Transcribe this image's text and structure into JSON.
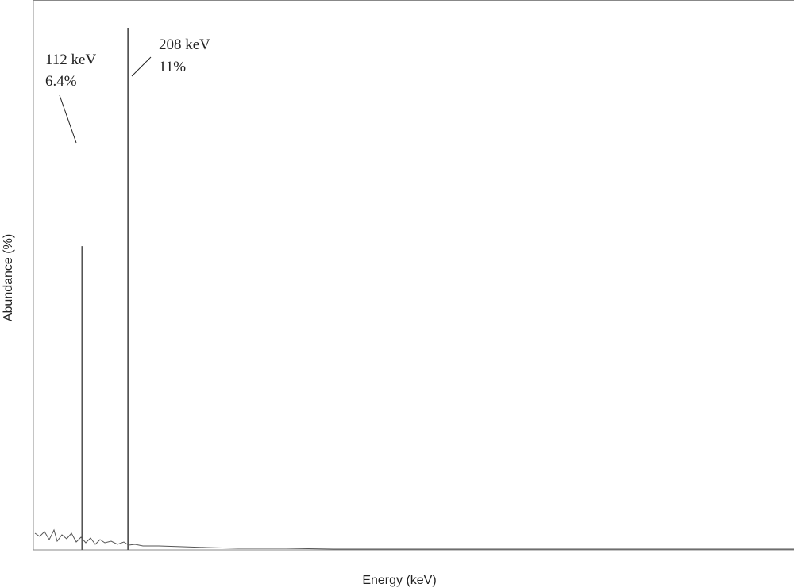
{
  "chart_data": {
    "type": "spectrum",
    "x_label": "Energy (keV)",
    "y_label": "Abundance (%)",
    "x": [
      112,
      208
    ],
    "values": [
      6.4,
      11
    ],
    "x_labels": [
      "112 keV",
      "208 keV"
    ],
    "value_labels": [
      "6.4%",
      "11%"
    ],
    "xlim": [
      10,
      1600
    ],
    "ylim": [
      0,
      11
    ],
    "color": "#555555"
  }
}
